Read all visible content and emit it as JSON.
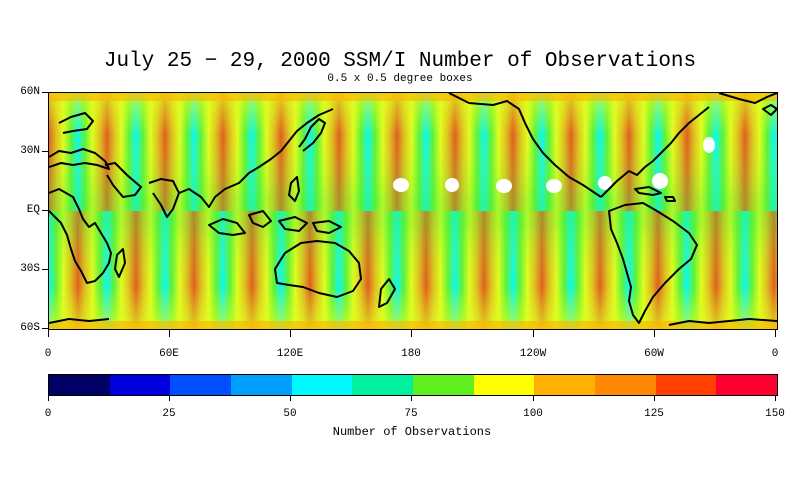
{
  "title": "July 25 − 29, 2000 SSM/I Number of Observations",
  "subtitle": "0.5 x 0.5 degree boxes",
  "map": {
    "lat_labels": [
      "60N",
      "30N",
      "EQ",
      "30S",
      "60S"
    ],
    "lon_labels": [
      "0",
      "60E",
      "120E",
      "180",
      "120W",
      "60W",
      "0"
    ]
  },
  "colorbar": {
    "title": "Number of Observations",
    "tick_labels": [
      "0",
      "25",
      "50",
      "75",
      "100",
      "125",
      "150"
    ],
    "colors": [
      "#000066",
      "#0000dd",
      "#0050ff",
      "#00a0ff",
      "#00f8ff",
      "#00f0a0",
      "#60f020",
      "#ffff00",
      "#ffb000",
      "#ff8800",
      "#ff4000",
      "#ff0030"
    ]
  },
  "chart_data": {
    "type": "heatmap",
    "title": "July 25 − 29, 2000 SSM/I Number of Observations",
    "subtitle": "0.5 x 0.5 degree boxes",
    "projection": "equirectangular",
    "lon_range": [
      0,
      360
    ],
    "lat_range": [
      -60,
      60
    ],
    "colorbar_range": [
      0,
      150
    ],
    "colorbar_label": "Number of Observations"
  }
}
